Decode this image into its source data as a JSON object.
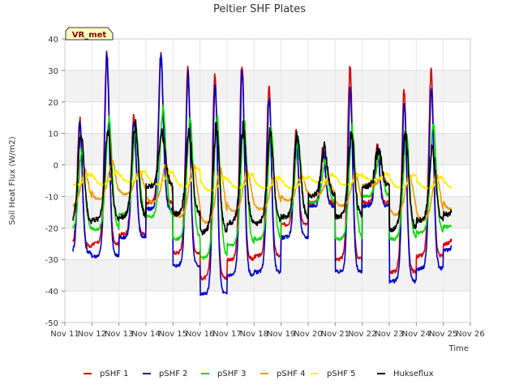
{
  "chart_data": {
    "type": "line",
    "title": "Peltier SHF Plates",
    "xlabel": "Time",
    "ylabel": "Soil Heat Flux (W/m2)",
    "badge": "VR_met",
    "ylim": [
      -50,
      40
    ],
    "yticks": [
      -50,
      -40,
      -30,
      -20,
      -10,
      0,
      10,
      20,
      30,
      40
    ],
    "xlim": [
      11,
      26
    ],
    "xticks": [
      11,
      12,
      13,
      14,
      15,
      16,
      17,
      18,
      19,
      20,
      21,
      22,
      23,
      24,
      25,
      26
    ],
    "xtick_labels": [
      "Nov 11",
      "Nov 12",
      "Nov 13",
      "Nov 14",
      "Nov 15",
      "Nov 16",
      "Nov 17",
      "Nov 18",
      "Nov 19",
      "Nov 20",
      "Nov 21",
      "Nov 22",
      "Nov 23",
      "Nov 24",
      "Nov 25",
      "Nov 26"
    ],
    "grid": true,
    "legend_position": "bottom",
    "days": [
      11,
      12,
      13,
      14,
      15,
      16,
      17,
      18,
      19,
      20,
      21,
      22,
      23,
      24,
      25
    ],
    "series": [
      {
        "name": "pSHF 1",
        "color": "#dd0000",
        "amp": [
          0.25,
          0.87,
          0.38,
          0.87,
          0.86,
          0.96,
          0.9,
          0.92,
          0.88,
          0.27,
          0.88,
          0.89,
          0.8,
          0.75,
          0.79
        ],
        "peak": [
          15,
          35,
          15,
          35,
          30,
          30,
          32,
          25,
          10,
          5,
          31,
          6,
          24,
          30,
          30
        ],
        "trough": [
          -26,
          -25,
          -22,
          -12,
          -28,
          -36,
          -30,
          -29,
          -19,
          -12,
          -30,
          -12,
          -34,
          -29,
          -25
        ],
        "lag": 0.55,
        "sharp": 3.5,
        "noise": 0.6
      },
      {
        "name": "pSHF 2",
        "color": "#0000cc",
        "amp": [
          0.25,
          0.87,
          0.38,
          0.87,
          0.86,
          0.96,
          0.9,
          0.92,
          0.88,
          0.27,
          0.88,
          0.89,
          0.8,
          0.75,
          0.79
        ],
        "peak": [
          13,
          35,
          14,
          34,
          29,
          25,
          29,
          21,
          9,
          4,
          24,
          5,
          19,
          24,
          24
        ],
        "trough": [
          -28,
          -29,
          -23,
          -14,
          -32,
          -41,
          -35,
          -34,
          -23,
          -13,
          -34,
          -13,
          -37,
          -33,
          -27
        ],
        "lag": 0.56,
        "sharp": 3.5,
        "noise": 0.6
      },
      {
        "name": "pSHF 3",
        "color": "#00dd00",
        "amp": [
          0.25,
          0.87,
          0.38,
          0.87,
          0.86,
          0.96,
          0.9,
          0.92,
          0.88,
          0.27,
          0.88,
          0.89,
          0.8,
          0.75,
          0.79
        ],
        "peak": [
          5,
          15,
          12,
          18,
          15,
          15,
          14,
          11,
          8,
          1,
          12,
          3,
          10,
          12,
          12
        ],
        "trough": [
          -21,
          -21,
          -16,
          -17,
          -24,
          -30,
          -26,
          -24,
          -17,
          -12,
          -24,
          -10,
          -24,
          -22,
          -20
        ],
        "lag": 0.63,
        "sharp": 2.2,
        "noise": 0.5
      },
      {
        "name": "pSHF 4",
        "color": "#ee9900",
        "amp": [
          0.25,
          0.87,
          0.38,
          0.87,
          0.86,
          0.96,
          0.9,
          0.92,
          0.88,
          0.27,
          0.88,
          0.89,
          0.8,
          0.75,
          0.79
        ],
        "peak": [
          -2,
          1,
          -2,
          0,
          0,
          -1,
          -2,
          -4,
          -3,
          -5,
          -3,
          -4,
          -3,
          -3,
          -2
        ],
        "trough": [
          -14,
          -12,
          -10,
          -13,
          -18,
          -20,
          -16,
          -15,
          -12,
          -10,
          -14,
          -7,
          -17,
          -19,
          -15
        ],
        "lag": 0.74,
        "sharp": 1.2,
        "noise": 0.3
      },
      {
        "name": "pSHF 5",
        "color": "#ffee00",
        "amp": [
          0.25,
          0.87,
          0.38,
          0.87,
          0.86,
          0.96,
          0.9,
          0.92,
          0.88,
          0.27,
          0.88,
          0.89,
          0.8,
          0.75,
          0.79
        ],
        "peak": [
          -3,
          -2,
          -2,
          -2,
          -1,
          -4,
          -3,
          -4,
          -4,
          -3,
          -3,
          -3,
          -3,
          -4,
          -4
        ],
        "trough": [
          -7,
          -7,
          -6,
          -7,
          -8,
          -9,
          -8,
          -8,
          -8,
          -6,
          -7,
          -5,
          -8,
          -8,
          -8
        ],
        "lag": 0.9,
        "sharp": 0.9,
        "noise": 0.2
      },
      {
        "name": "Hukseflux",
        "color": "#000000",
        "amp": [
          0.25,
          0.87,
          0.38,
          0.87,
          0.86,
          0.96,
          0.9,
          0.92,
          0.88,
          0.27,
          0.88,
          0.89,
          0.8,
          0.75,
          0.79
        ],
        "peak": [
          10,
          11,
          13,
          10,
          10,
          12,
          12,
          11,
          10,
          5,
          10,
          5,
          10,
          5,
          5
        ],
        "trough": [
          -19,
          -18,
          -17,
          -7,
          -16,
          -22,
          -19,
          -19,
          -17,
          -10,
          -17,
          -7,
          -21,
          -18,
          -16
        ],
        "lag": 0.6,
        "sharp": 2.0,
        "noise": 0.8
      }
    ]
  }
}
